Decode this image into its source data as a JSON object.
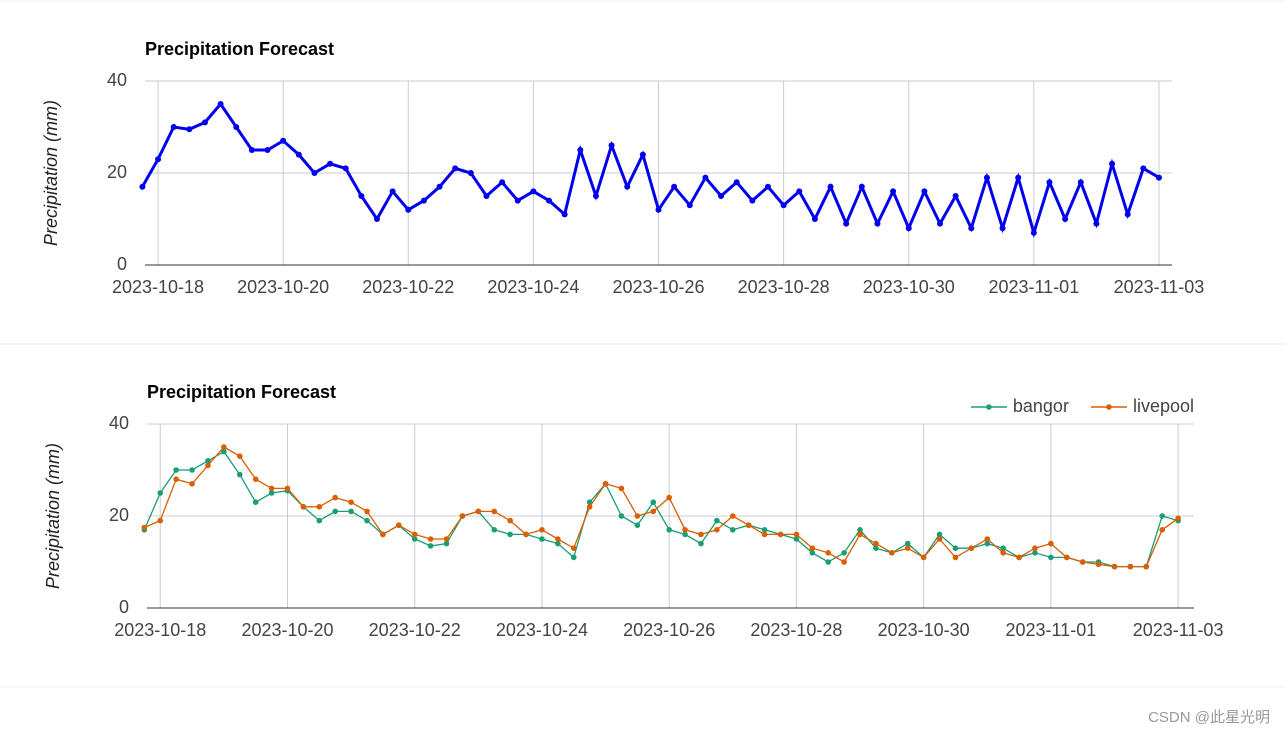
{
  "chart_data": [
    {
      "type": "line",
      "title": "Precipitation Forecast",
      "y_label": "Precipitation (mm)",
      "color": "#0000ee",
      "grid": true,
      "xlim": [
        "2023-10-17T19:00",
        "2023-11-03T05:00"
      ],
      "xticks": [
        "2023-10-18",
        "2023-10-20",
        "2023-10-22",
        "2023-10-24",
        "2023-10-26",
        "2023-10-28",
        "2023-10-30",
        "2023-11-01",
        "2023-11-03"
      ],
      "ylim": [
        0,
        40
      ],
      "yticks": [
        0,
        20,
        40
      ],
      "x": [
        "2023-10-17T18:00",
        "2023-10-18T00:00",
        "2023-10-18T06:00",
        "2023-10-18T12:00",
        "2023-10-18T18:00",
        "2023-10-19T00:00",
        "2023-10-19T06:00",
        "2023-10-19T12:00",
        "2023-10-19T18:00",
        "2023-10-20T00:00",
        "2023-10-20T06:00",
        "2023-10-20T12:00",
        "2023-10-20T18:00",
        "2023-10-21T00:00",
        "2023-10-21T06:00",
        "2023-10-21T12:00",
        "2023-10-21T18:00",
        "2023-10-22T00:00",
        "2023-10-22T06:00",
        "2023-10-22T12:00",
        "2023-10-22T18:00",
        "2023-10-23T00:00",
        "2023-10-23T06:00",
        "2023-10-23T12:00",
        "2023-10-23T18:00",
        "2023-10-24T00:00",
        "2023-10-24T06:00",
        "2023-10-24T12:00",
        "2023-10-24T18:00",
        "2023-10-25T00:00",
        "2023-10-25T06:00",
        "2023-10-25T12:00",
        "2023-10-25T18:00",
        "2023-10-26T00:00",
        "2023-10-26T06:00",
        "2023-10-26T12:00",
        "2023-10-26T18:00",
        "2023-10-27T00:00",
        "2023-10-27T06:00",
        "2023-10-27T12:00",
        "2023-10-27T18:00",
        "2023-10-28T00:00",
        "2023-10-28T06:00",
        "2023-10-28T12:00",
        "2023-10-28T18:00",
        "2023-10-29T00:00",
        "2023-10-29T06:00",
        "2023-10-29T12:00",
        "2023-10-29T18:00",
        "2023-10-30T00:00",
        "2023-10-30T06:00",
        "2023-10-30T12:00",
        "2023-10-30T18:00",
        "2023-10-31T00:00",
        "2023-10-31T06:00",
        "2023-10-31T12:00",
        "2023-10-31T18:00",
        "2023-11-01T00:00",
        "2023-11-01T06:00",
        "2023-11-01T12:00",
        "2023-11-01T18:00",
        "2023-11-02T00:00",
        "2023-11-02T06:00",
        "2023-11-02T12:00",
        "2023-11-02T18:00",
        "2023-11-03T00:00"
      ],
      "values": [
        17,
        23,
        30,
        29.5,
        31,
        35,
        30,
        25,
        25,
        27,
        24,
        20,
        22,
        21,
        15,
        10,
        16,
        12,
        14,
        17,
        21,
        20,
        15,
        18,
        14,
        16,
        14,
        11,
        25,
        15,
        26,
        17,
        24,
        12,
        17,
        13,
        19,
        15,
        18,
        14,
        17,
        13,
        16,
        10,
        17,
        9,
        17,
        9,
        16,
        8,
        16,
        9,
        15,
        8,
        19,
        8,
        19,
        7,
        18,
        10,
        18,
        9,
        22,
        11,
        21,
        19
      ]
    },
    {
      "type": "line",
      "title": "Precipitation Forecast",
      "y_label": "Precipitation (mm)",
      "grid": true,
      "legend": "top-right",
      "xlim": [
        "2023-10-17T19:00",
        "2023-11-03T06:00"
      ],
      "xticks": [
        "2023-10-18",
        "2023-10-20",
        "2023-10-22",
        "2023-10-24",
        "2023-10-26",
        "2023-10-28",
        "2023-10-30",
        "2023-11-01",
        "2023-11-03"
      ],
      "ylim": [
        0,
        40
      ],
      "yticks": [
        0,
        20,
        40
      ],
      "x": [
        "2023-10-17T18:00",
        "2023-10-18T00:00",
        "2023-10-18T06:00",
        "2023-10-18T12:00",
        "2023-10-18T18:00",
        "2023-10-19T00:00",
        "2023-10-19T06:00",
        "2023-10-19T12:00",
        "2023-10-19T18:00",
        "2023-10-20T00:00",
        "2023-10-20T06:00",
        "2023-10-20T12:00",
        "2023-10-20T18:00",
        "2023-10-21T00:00",
        "2023-10-21T06:00",
        "2023-10-21T12:00",
        "2023-10-21T18:00",
        "2023-10-22T00:00",
        "2023-10-22T06:00",
        "2023-10-22T12:00",
        "2023-10-22T18:00",
        "2023-10-23T00:00",
        "2023-10-23T06:00",
        "2023-10-23T12:00",
        "2023-10-23T18:00",
        "2023-10-24T00:00",
        "2023-10-24T06:00",
        "2023-10-24T12:00",
        "2023-10-24T18:00",
        "2023-10-25T00:00",
        "2023-10-25T06:00",
        "2023-10-25T12:00",
        "2023-10-25T18:00",
        "2023-10-26T00:00",
        "2023-10-26T06:00",
        "2023-10-26T12:00",
        "2023-10-26T18:00",
        "2023-10-27T00:00",
        "2023-10-27T06:00",
        "2023-10-27T12:00",
        "2023-10-27T18:00",
        "2023-10-28T00:00",
        "2023-10-28T06:00",
        "2023-10-28T12:00",
        "2023-10-28T18:00",
        "2023-10-29T00:00",
        "2023-10-29T06:00",
        "2023-10-29T12:00",
        "2023-10-29T18:00",
        "2023-10-30T00:00",
        "2023-10-30T06:00",
        "2023-10-30T12:00",
        "2023-10-30T18:00",
        "2023-10-31T00:00",
        "2023-10-31T06:00",
        "2023-10-31T12:00",
        "2023-10-31T18:00",
        "2023-11-01T00:00",
        "2023-11-01T06:00",
        "2023-11-01T12:00",
        "2023-11-01T18:00",
        "2023-11-02T00:00",
        "2023-11-02T06:00",
        "2023-11-02T12:00",
        "2023-11-02T18:00",
        "2023-11-03T00:00"
      ],
      "series": [
        {
          "name": "bangor",
          "color": "#1b9e77",
          "values": [
            17,
            25,
            30,
            30,
            32,
            34,
            29,
            23,
            25,
            25.5,
            22,
            19,
            21,
            21,
            19,
            16,
            18,
            15,
            13.5,
            14,
            20,
            21,
            17,
            16,
            16,
            15,
            14,
            11,
            23,
            27,
            20,
            18,
            23,
            17,
            16,
            14,
            19,
            17,
            18,
            17,
            16,
            15,
            12,
            10,
            12,
            17,
            13,
            12,
            14,
            11,
            16,
            13,
            13,
            14,
            13,
            11,
            12,
            11,
            11,
            10,
            10,
            9,
            9,
            9,
            20,
            19
          ]
        },
        {
          "name": "livepool",
          "color": "#d95f02",
          "values": [
            17.5,
            19,
            28,
            27,
            31,
            35,
            33,
            28,
            26,
            26,
            22,
            22,
            24,
            23,
            21,
            16,
            18,
            16,
            15,
            15,
            20,
            21,
            21,
            19,
            16,
            17,
            15,
            13,
            22,
            27,
            26,
            20,
            21,
            24,
            17,
            16,
            17,
            20,
            18,
            16,
            16,
            16,
            13,
            12,
            10,
            16,
            14,
            12,
            13,
            11,
            15,
            11,
            13,
            15,
            12,
            11,
            13,
            14,
            11,
            10,
            9.5,
            9,
            9,
            9,
            17,
            19.5
          ]
        }
      ]
    }
  ],
  "watermark": "CSDN @此星光明"
}
